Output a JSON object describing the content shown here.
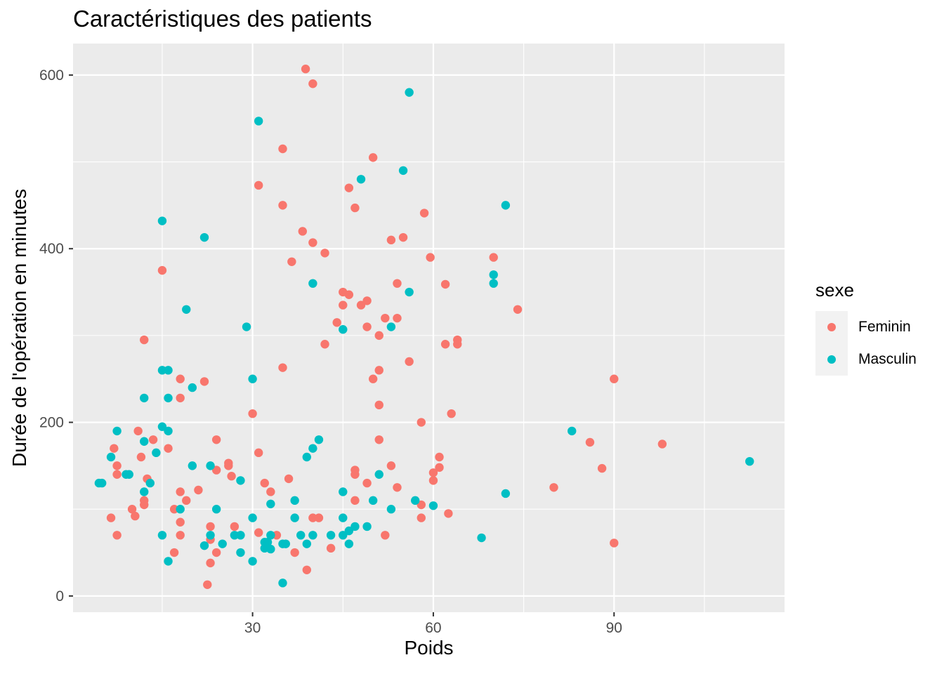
{
  "chart_data": {
    "type": "scatter",
    "title": "Caractéristiques des patients",
    "xlabel": "Poids",
    "ylabel": "Durée de l'opération en minutes",
    "xlim": [
      0.2,
      118.3
    ],
    "ylim": [
      -18.7,
      636.3
    ],
    "x_ticks": [
      30,
      60,
      90
    ],
    "y_ticks": [
      0,
      200,
      400,
      600
    ],
    "grid": true,
    "legend_position": "right",
    "legend_title": "sexe",
    "series": [
      {
        "name": "Feminin",
        "color": "#F8766D",
        "points": [
          [
            38.8,
            607
          ],
          [
            40,
            590
          ],
          [
            35,
            515
          ],
          [
            50,
            505
          ],
          [
            31,
            473
          ],
          [
            46,
            470
          ],
          [
            35,
            450
          ],
          [
            47,
            447
          ],
          [
            58.5,
            441
          ],
          [
            38.3,
            420
          ],
          [
            55,
            413
          ],
          [
            53,
            410
          ],
          [
            40,
            407
          ],
          [
            42,
            395
          ],
          [
            36.5,
            385
          ],
          [
            59.5,
            390
          ],
          [
            70,
            390
          ],
          [
            15,
            375
          ],
          [
            54,
            360
          ],
          [
            62,
            359
          ],
          [
            45,
            350
          ],
          [
            46,
            347
          ],
          [
            49,
            340
          ],
          [
            48,
            335
          ],
          [
            45,
            335
          ],
          [
            74,
            330
          ],
          [
            52,
            320
          ],
          [
            54,
            320
          ],
          [
            44,
            315
          ],
          [
            49,
            310
          ],
          [
            51,
            300
          ],
          [
            12,
            295
          ],
          [
            64,
            295
          ],
          [
            62,
            290
          ],
          [
            64,
            290
          ],
          [
            42,
            290
          ],
          [
            56,
            270
          ],
          [
            35,
            263
          ],
          [
            51,
            260
          ],
          [
            18,
            250
          ],
          [
            22,
            247
          ],
          [
            50,
            250
          ],
          [
            90,
            250
          ],
          [
            18,
            228
          ],
          [
            51,
            220
          ],
          [
            30,
            210
          ],
          [
            63,
            210
          ],
          [
            58,
            200
          ],
          [
            11,
            190
          ],
          [
            13.5,
            180
          ],
          [
            24,
            180
          ],
          [
            51,
            180
          ],
          [
            86,
            177
          ],
          [
            98,
            175
          ],
          [
            7,
            170
          ],
          [
            16,
            170
          ],
          [
            31,
            165
          ],
          [
            61,
            160
          ],
          [
            11.5,
            160
          ],
          [
            26,
            153
          ],
          [
            7.5,
            150
          ],
          [
            26,
            150
          ],
          [
            53,
            150
          ],
          [
            61,
            148
          ],
          [
            88,
            147
          ],
          [
            24,
            145
          ],
          [
            47,
            145
          ],
          [
            60,
            142
          ],
          [
            7.5,
            140
          ],
          [
            47,
            140
          ],
          [
            26.5,
            138
          ],
          [
            12.5,
            135
          ],
          [
            36,
            135
          ],
          [
            60,
            133
          ],
          [
            32,
            130
          ],
          [
            49,
            130
          ],
          [
            54,
            125
          ],
          [
            80,
            125
          ],
          [
            21,
            122
          ],
          [
            18,
            120
          ],
          [
            33,
            120
          ],
          [
            12,
            110
          ],
          [
            19,
            110
          ],
          [
            47,
            110
          ],
          [
            12,
            105
          ],
          [
            58,
            105
          ],
          [
            10,
            100
          ],
          [
            17,
            100
          ],
          [
            10.5,
            92
          ],
          [
            6.5,
            90
          ],
          [
            18,
            85
          ],
          [
            40,
            90
          ],
          [
            41,
            90
          ],
          [
            58,
            90
          ],
          [
            62.5,
            95
          ],
          [
            23,
            80
          ],
          [
            27,
            80
          ],
          [
            7.5,
            70
          ],
          [
            18,
            70
          ],
          [
            31,
            73
          ],
          [
            34,
            70
          ],
          [
            52,
            70
          ],
          [
            23,
            65
          ],
          [
            90,
            61
          ],
          [
            43,
            55
          ],
          [
            17,
            50
          ],
          [
            24,
            50
          ],
          [
            37,
            50
          ],
          [
            23,
            38
          ],
          [
            39,
            30
          ],
          [
            22.5,
            13
          ]
        ]
      },
      {
        "name": "Masculin",
        "color": "#00BFC4",
        "points": [
          [
            56,
            580
          ],
          [
            31,
            547
          ],
          [
            55,
            490
          ],
          [
            48,
            480
          ],
          [
            72,
            450
          ],
          [
            15,
            432
          ],
          [
            22,
            413
          ],
          [
            70,
            370
          ],
          [
            40,
            360
          ],
          [
            70,
            360
          ],
          [
            56,
            350
          ],
          [
            19,
            330
          ],
          [
            29,
            310
          ],
          [
            53,
            310
          ],
          [
            45,
            307
          ],
          [
            15,
            260
          ],
          [
            16,
            260
          ],
          [
            30,
            250
          ],
          [
            20,
            240
          ],
          [
            12,
            228
          ],
          [
            16,
            228
          ],
          [
            15,
            195
          ],
          [
            7.5,
            190
          ],
          [
            16,
            190
          ],
          [
            83,
            190
          ],
          [
            12,
            178
          ],
          [
            41,
            180
          ],
          [
            40,
            170
          ],
          [
            14,
            165
          ],
          [
            6.5,
            160
          ],
          [
            39,
            160
          ],
          [
            112.5,
            155
          ],
          [
            20,
            150
          ],
          [
            23,
            150
          ],
          [
            4.5,
            130
          ],
          [
            5,
            130
          ],
          [
            13,
            130
          ],
          [
            28,
            133
          ],
          [
            51,
            140
          ],
          [
            9,
            140
          ],
          [
            9.5,
            140
          ],
          [
            12,
            120
          ],
          [
            45,
            120
          ],
          [
            72,
            118
          ],
          [
            37,
            110
          ],
          [
            50,
            110
          ],
          [
            57,
            110
          ],
          [
            33,
            106
          ],
          [
            60,
            104
          ],
          [
            18,
            100
          ],
          [
            24,
            100
          ],
          [
            53,
            100
          ],
          [
            30,
            90
          ],
          [
            37,
            90
          ],
          [
            45,
            90
          ],
          [
            47,
            80
          ],
          [
            49,
            80
          ],
          [
            46,
            75
          ],
          [
            15,
            70
          ],
          [
            23,
            70
          ],
          [
            27,
            70
          ],
          [
            28,
            70
          ],
          [
            33,
            70
          ],
          [
            38,
            70
          ],
          [
            40,
            70
          ],
          [
            43,
            70
          ],
          [
            45,
            70
          ],
          [
            68,
            67
          ],
          [
            32,
            62
          ],
          [
            32.5,
            62
          ],
          [
            22,
            58
          ],
          [
            25,
            60
          ],
          [
            35,
            60
          ],
          [
            35.5,
            60
          ],
          [
            39,
            60
          ],
          [
            46,
            60
          ],
          [
            32,
            55
          ],
          [
            33,
            54
          ],
          [
            28,
            50
          ],
          [
            16,
            40
          ],
          [
            30,
            40
          ],
          [
            35,
            15
          ]
        ]
      }
    ]
  }
}
